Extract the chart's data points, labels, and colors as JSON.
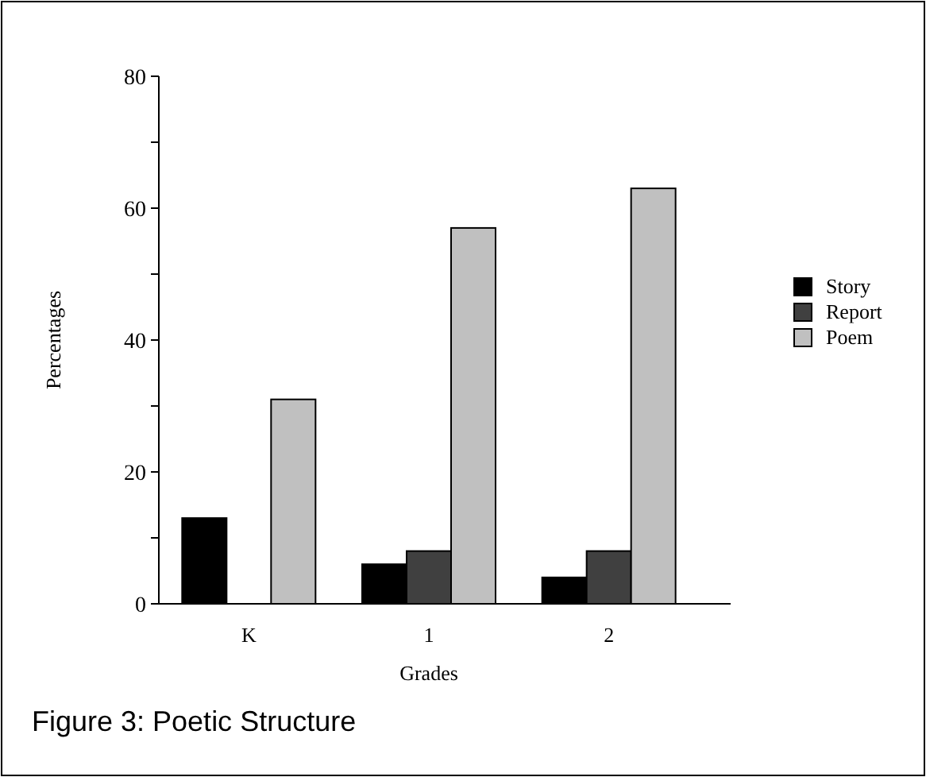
{
  "chart_data": {
    "type": "bar",
    "title": "Figure 3:  Poetic Structure",
    "xlabel": "Grades",
    "ylabel": "Percentages",
    "categories": [
      "K",
      "1",
      "2"
    ],
    "series": [
      {
        "name": "Story",
        "color": "#000000",
        "values": [
          13,
          6,
          4
        ]
      },
      {
        "name": "Report",
        "color": "#404040",
        "values": [
          null,
          8,
          8
        ]
      },
      {
        "name": "Poem",
        "color": "#c0c0c0",
        "values": [
          31,
          57,
          63
        ]
      }
    ],
    "ylim": [
      0,
      80
    ],
    "yticks": [
      0,
      {
        "value": 10,
        "label": null
      },
      20,
      {
        "value": 30,
        "label": null
      },
      40,
      {
        "value": 50,
        "label": null
      },
      60,
      {
        "value": 70,
        "label": null
      },
      80
    ],
    "grid": false,
    "legend": "right"
  }
}
